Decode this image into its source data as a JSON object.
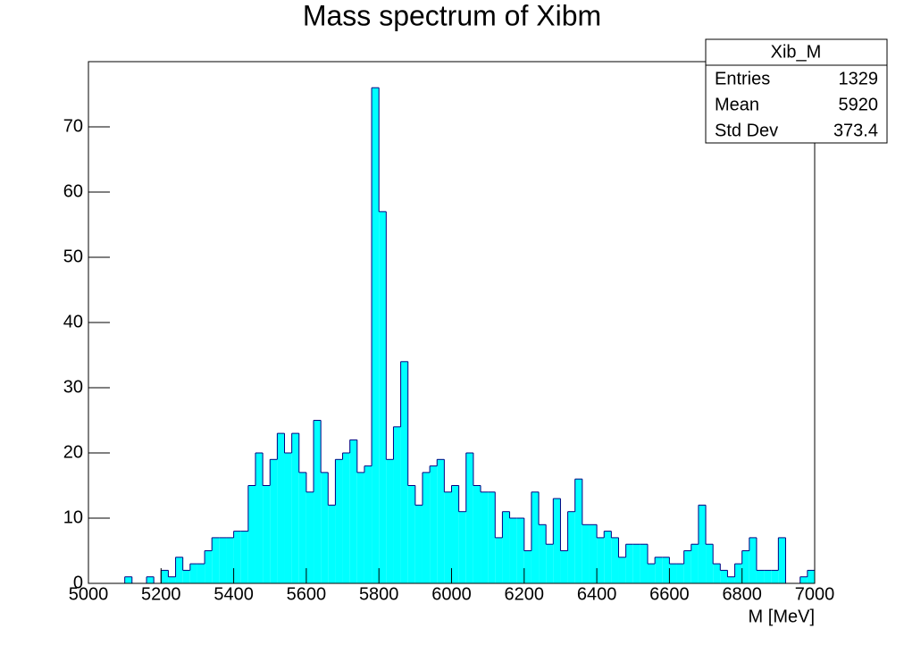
{
  "chart_data": {
    "type": "histogram",
    "title": "Mass spectrum of Xibm",
    "x_label": "M [MeV]",
    "bins": [
      5000,
      5020,
      5040,
      5060,
      5080,
      5100,
      5120,
      5140,
      5160,
      5180,
      5200,
      5220,
      5240,
      5260,
      5280,
      5300,
      5320,
      5340,
      5360,
      5380,
      5400,
      5420,
      5440,
      5460,
      5480,
      5500,
      5520,
      5540,
      5560,
      5580,
      5600,
      5620,
      5640,
      5660,
      5680,
      5700,
      5720,
      5740,
      5760,
      5780,
      5800,
      5820,
      5840,
      5860,
      5880,
      5900,
      5920,
      5940,
      5960,
      5980,
      6000,
      6020,
      6040,
      6060,
      6080,
      6100,
      6120,
      6140,
      6160,
      6180,
      6200,
      6220,
      6240,
      6260,
      6280,
      6300,
      6320,
      6340,
      6360,
      6380,
      6400,
      6420,
      6440,
      6460,
      6480,
      6500,
      6520,
      6540,
      6560,
      6580,
      6600,
      6620,
      6640,
      6660,
      6680,
      6700,
      6720,
      6740,
      6760,
      6780,
      6800,
      6820,
      6840,
      6860,
      6880,
      6900,
      6920,
      6940,
      6960,
      6980,
      7000
    ],
    "values": [
      0,
      0,
      0,
      0,
      0,
      1,
      0,
      0,
      1,
      0,
      2,
      1,
      4,
      2,
      3,
      3,
      5,
      7,
      7,
      7,
      8,
      8,
      15,
      20,
      15,
      19,
      23,
      20,
      23,
      17,
      14,
      25,
      17,
      12,
      19,
      20,
      22,
      17,
      18,
      76,
      57,
      19,
      24,
      34,
      15,
      12,
      17,
      18,
      19,
      14,
      15,
      11,
      20,
      15,
      14,
      14,
      7,
      11,
      10,
      10,
      5,
      14,
      9,
      6,
      13,
      5,
      11,
      16,
      9,
      9,
      7,
      8,
      7,
      4,
      6,
      6,
      6,
      3,
      4,
      4,
      3,
      3,
      5,
      6,
      12,
      6,
      3,
      2,
      1,
      3,
      5,
      7,
      2,
      2,
      2,
      7,
      0,
      0,
      1,
      2
    ],
    "color": "#00ffff",
    "edge_color": "#000080",
    "xlim": [
      5000,
      7000
    ],
    "xticks": [
      5000,
      5200,
      5400,
      5600,
      5800,
      6000,
      6200,
      6400,
      6600,
      6800,
      7000
    ],
    "ylim": [
      0,
      80
    ],
    "yticks": [
      0,
      10,
      20,
      30,
      40,
      50,
      60,
      70
    ],
    "stats": {
      "title": "Xib_M",
      "rows": [
        [
          "Entries",
          "1329"
        ],
        [
          "Mean",
          "5920"
        ],
        [
          "Std Dev",
          "373.4"
        ]
      ]
    }
  }
}
